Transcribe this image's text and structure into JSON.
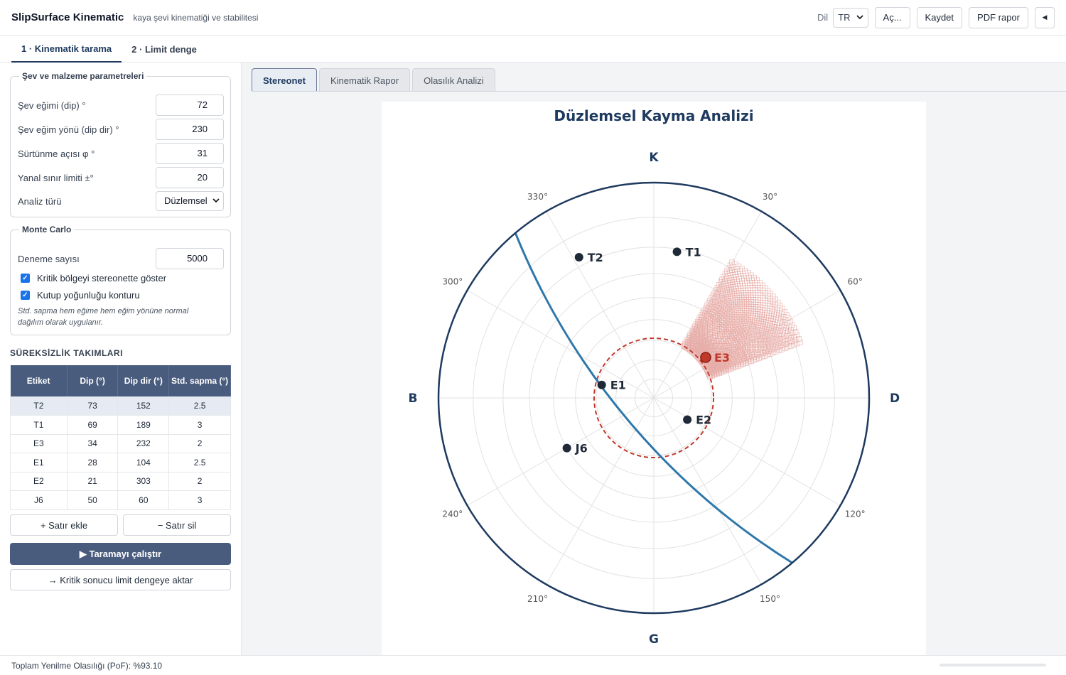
{
  "header": {
    "title": "SlipSurface Kinematic",
    "subtitle": "kaya şevi kinematiği ve stabilitesi",
    "lang_label": "Dil",
    "lang_value": "TR",
    "open_label": "Aç...",
    "save_label": "Kaydet",
    "pdf_label": "PDF rapor",
    "toggle_icon": "caret-left-icon"
  },
  "main_tabs": [
    {
      "label": "1 · Kinematik tarama",
      "active": true
    },
    {
      "label": "2 · Limit denge",
      "active": false
    }
  ],
  "params": {
    "legend": "Şev ve malzeme parametreleri",
    "fields": [
      {
        "label": "Şev eğimi (dip) °",
        "value": "72"
      },
      {
        "label": "Şev eğim yönü (dip dir) °",
        "value": "230"
      },
      {
        "label": "Sürtünme açısı φ °",
        "value": "31"
      },
      {
        "label": "Yanal sınır limiti ±°",
        "value": "20"
      }
    ],
    "analysis_label": "Analiz türü",
    "analysis_value": "Düzlemsel"
  },
  "monte_carlo": {
    "legend": "Monte Carlo",
    "trials_label": "Deneme sayısı",
    "trials_value": "5000",
    "check1": "Kritik bölgeyi stereonette göster",
    "check2": "Kutup yoğunluğu konturu",
    "note": "Std. sapma hem eğime hem eğim yönüne normal dağılım olarak uygulanır."
  },
  "sets": {
    "title": "SÜREKSİZLİK TAKIMLARI",
    "headers": [
      "Etiket",
      "Dip (°)",
      "Dip dir (°)",
      "Std. sapma (°)"
    ],
    "rows": [
      [
        "T2",
        "73",
        "152",
        "2.5"
      ],
      [
        "T1",
        "69",
        "189",
        "3"
      ],
      [
        "E3",
        "34",
        "232",
        "2"
      ],
      [
        "E1",
        "28",
        "104",
        "2.5"
      ],
      [
        "E2",
        "21",
        "303",
        "2"
      ],
      [
        "J6",
        "50",
        "60",
        "3"
      ]
    ],
    "add_label": "+ Satır ekle",
    "remove_label": "− Satır sil",
    "run_label": "▶ Taramayı çalıştır",
    "transfer_label": "→ Kritik sonucu limit dengeye aktar"
  },
  "sub_tabs": [
    {
      "label": "Stereonet",
      "active": true
    },
    {
      "label": "Kinematik Rapor",
      "active": false
    },
    {
      "label": "Olasılık Analizi",
      "active": false
    }
  ],
  "stereonet": {
    "title": "Düzlemsel Kayma Analizi",
    "cardinals": {
      "n": "K",
      "e": "D",
      "s": "G",
      "w": "B"
    },
    "azimuth_ticks": [
      "30°",
      "60°",
      "120°",
      "150°",
      "210°",
      "240°",
      "300°",
      "330°"
    ],
    "friction_angle": 31,
    "slope_dip": 72,
    "slope_dipdir": 230,
    "lateral_limit": 20,
    "poles": [
      {
        "label": "T1",
        "trend": 9,
        "plunge": 21,
        "critical": false
      },
      {
        "label": "T2",
        "trend": 332,
        "plunge": 17,
        "critical": false
      },
      {
        "label": "E3",
        "trend": 52,
        "plunge": 56,
        "critical": true
      },
      {
        "label": "E1",
        "trend": 284,
        "plunge": 62,
        "critical": false
      },
      {
        "label": "E2",
        "trend": 123,
        "plunge": 69,
        "critical": false
      },
      {
        "label": "J6",
        "trend": 240,
        "plunge": 40,
        "critical": false
      }
    ],
    "colors": {
      "outline": "#1e3a5f",
      "slope_plane": "#2e77aa",
      "friction_circle": "#c0392b",
      "critical_zone": "#e6a9a4",
      "pole": "#1f2937"
    }
  },
  "status": {
    "text": "Toplam Yenilme Olasılığı (PoF): %93.10",
    "progress": 0
  }
}
